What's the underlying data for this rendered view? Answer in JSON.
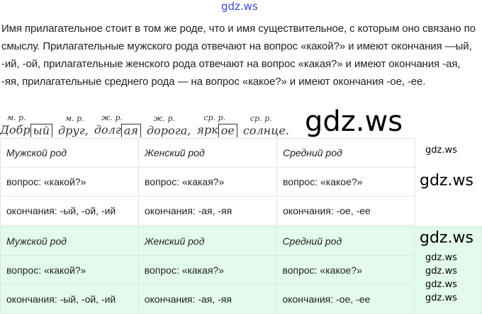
{
  "watermark": "gdz.ws",
  "paragraph": "Имя прилагательное стоит в том же роде, что и имя существительное, с которым оно связано по смыслу. Прилагательные мужского рода отвечают на вопрос «какой?» и имеют окончания —ый, -ий, -ой, прилагательные женского рода отвечают на вопрос «какая?» и имеют окончания -ая, -яя, прилагательные среднего рода — на вопрос «какое?» и имеют окончания -ое, -ее.",
  "example": {
    "labels": [
      "м. р.",
      "м. р.",
      "ж. р.",
      "ж. р.",
      "ср. р.",
      "ср. р."
    ],
    "w1a": "Добр",
    "w1b": "ый",
    "w2": "друг,",
    "w3a": "долг",
    "w3b": "ая",
    "w4": "дорога,",
    "w5a": "ярк",
    "w5b": "ое",
    "w6": "солнце."
  },
  "tables": [
    {
      "rows": [
        [
          "Мужской род",
          "Женский род",
          "Средний род"
        ],
        [
          "вопрос: «какой?»",
          "вопрос: «какая?»",
          "вопрос: «какое?»"
        ],
        [
          "окончания: -ый, -ой, -ий",
          "окончания: -ая, -яя",
          "окончания: -ое, -ее"
        ]
      ]
    },
    {
      "rows": [
        [
          "Мужской род",
          "Женский род",
          "Средний род"
        ],
        [
          "вопрос: «какой?»",
          "вопрос: «какая?»",
          "вопрос: «какое?»"
        ],
        [
          "окончания: -ый, -ой, -ий",
          "окончания: -ая, -яя",
          "окончания: -ое, -ее"
        ]
      ]
    }
  ]
}
